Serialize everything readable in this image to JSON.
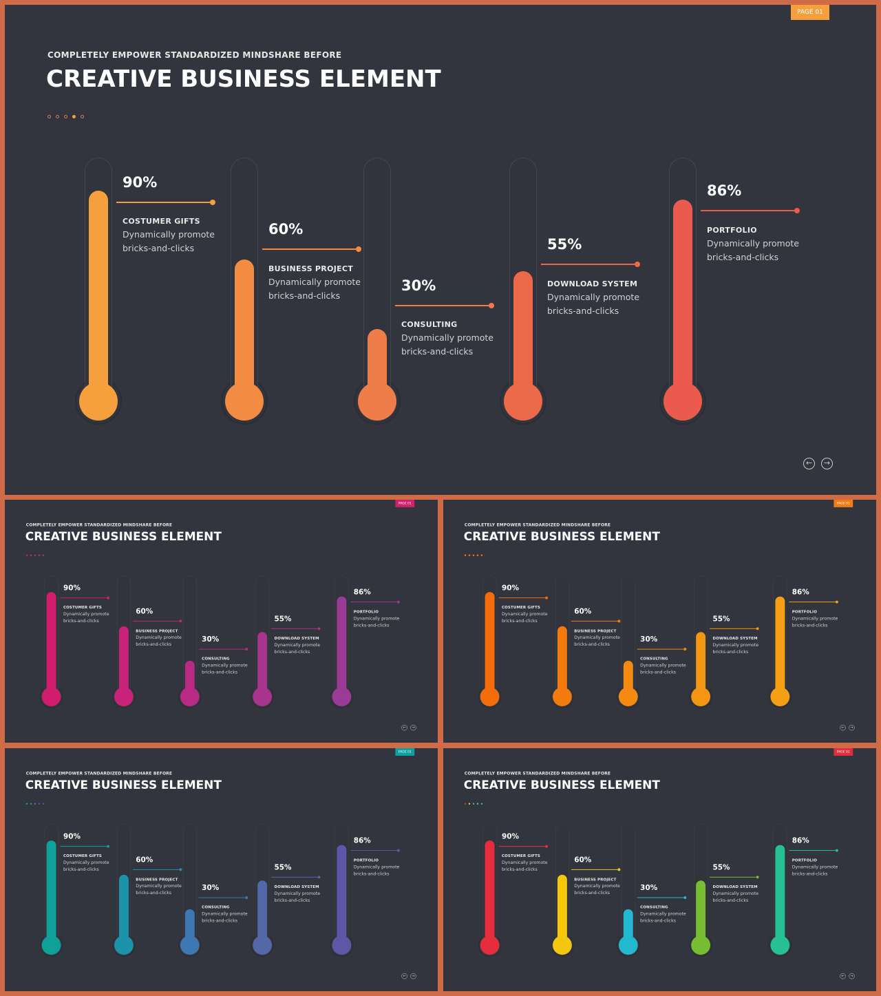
{
  "slides": [
    {
      "page_tag": "PAGE 01",
      "accent": "#f5a03c",
      "tag_color": "#f5a03c",
      "dots": [
        "#c8834e",
        "#c8834e",
        "#c8834e",
        "#f5a03c",
        "#c8834e"
      ],
      "colors": [
        "#f5a03c",
        "#f28c42",
        "#ef7d4a",
        "#ec6a4a",
        "#ea5a4e"
      ]
    },
    {
      "page_tag": "PAGE 01",
      "accent": "#d0206e",
      "tag_color": "#d0206e",
      "dots": [
        "#d0206e",
        "#b8307a",
        "#b8307a",
        "#a8358a",
        "#9a3b8e"
      ],
      "colors": [
        "#d21c6d",
        "#c8227a",
        "#b92a84",
        "#a8358d",
        "#9a3b95"
      ]
    },
    {
      "page_tag": "PAGE 01",
      "accent": "#f57a12",
      "tag_color": "#f57a12",
      "dots": [
        "#f57a12",
        "#f57a12",
        "#f57a12",
        "#f57a12",
        "#f57a12"
      ],
      "colors": [
        "#f56c0c",
        "#f57a0e",
        "#f58a10",
        "#f59612",
        "#f5a014"
      ]
    },
    {
      "page_tag": "PAGE 01",
      "accent": "#0fa0a0",
      "tag_color": "#0fa0a0",
      "dots": [
        "#0fa0a0",
        "#1f8fb0",
        "#3a78b0",
        "#5060a8",
        "#5a55a0"
      ],
      "colors": [
        "#0fa09a",
        "#1d92ab",
        "#3e78b2",
        "#5468a8",
        "#5d58a6"
      ]
    },
    {
      "page_tag": "PAGE 01",
      "accent": "#e02e3c",
      "tag_color": "#e02e3c",
      "dots": [
        "#e02e3c",
        "#f5c514",
        "#28b8c8",
        "#7cc03a",
        "#2bc09a"
      ],
      "colors": [
        "#e52e3d",
        "#f5c70f",
        "#22b8cf",
        "#78be32",
        "#27c093"
      ]
    }
  ],
  "header": {
    "subtitle": "COMPLETELY  EMPOWER  STANDARDIZED  MINDSHARE  BEFORE",
    "title": "CREATIVE BUSINESS ELEMENT"
  },
  "nav": {
    "prev_label": "←",
    "next_label": "→"
  },
  "chart_data": {
    "type": "bar",
    "categories": [
      "COSTUMER  GIFTS",
      "BUSINESS  PROJECT",
      "CONSULTING",
      "DOWNLOAD SYSTEM",
      "PORTFOLIO"
    ],
    "values": [
      90,
      60,
      30,
      55,
      86
    ],
    "value_labels": [
      "90%",
      "60%",
      "30%",
      "55%",
      "86%"
    ],
    "description": [
      "Dynamically promote",
      "bricks-and-clicks"
    ],
    "ylim": [
      0,
      100
    ]
  }
}
